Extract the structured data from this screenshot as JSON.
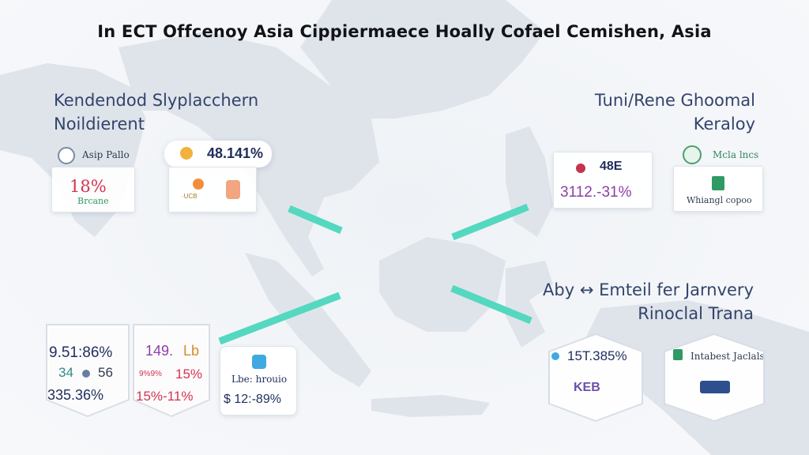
{
  "title": "In ECT Offcenoy Asia Cippiermaece Hoally Cofael Cemishen, Asia",
  "headings": {
    "top_left": [
      "Kendendod Slyplacchern",
      "Noildierent"
    ],
    "top_right": [
      "Tuni/Rene Ghoomal",
      "Keraloy"
    ],
    "bottom_right": [
      "Aby ↔ Emteil fer Jarnvery",
      "Rinoclal Trana"
    ]
  },
  "cards": {
    "asia_pallo": {
      "label": "Asip Pallo",
      "value": "18%",
      "sub": "Brcane"
    },
    "percent_pill": {
      "value": "48.141%",
      "sub": "·UCB"
    },
    "top_mid_right": {
      "value": "48E",
      "range": "3112.-31%"
    },
    "metal_lines": {
      "label": "Mcla lncs",
      "sub": "Whiangl copoo"
    },
    "bottom_left": {
      "line1": "9.51:86%",
      "line2a": "34",
      "line2b": "56",
      "line3": "335.36%"
    },
    "bottom_left_2": {
      "line1a": "149.",
      "line1b": "Lb",
      "line2a": "9%9%",
      "line2b": "15%",
      "line3": "15%-11%"
    },
    "bottom_mid": {
      "label": "Lbe: hrouio",
      "value": "$ 12:-89%"
    },
    "bottom_right_1": {
      "value": "15T.385%",
      "sub": "KEB"
    },
    "bottom_right_2": {
      "label": "Intabest Jaclals"
    }
  },
  "colors": {
    "accent_teal": "#54d8bf",
    "heading_blue": "#33446b",
    "red": "#d3344e",
    "purple": "#8d3fa8",
    "navy": "#1f2d5c",
    "green": "#2f9a63"
  }
}
